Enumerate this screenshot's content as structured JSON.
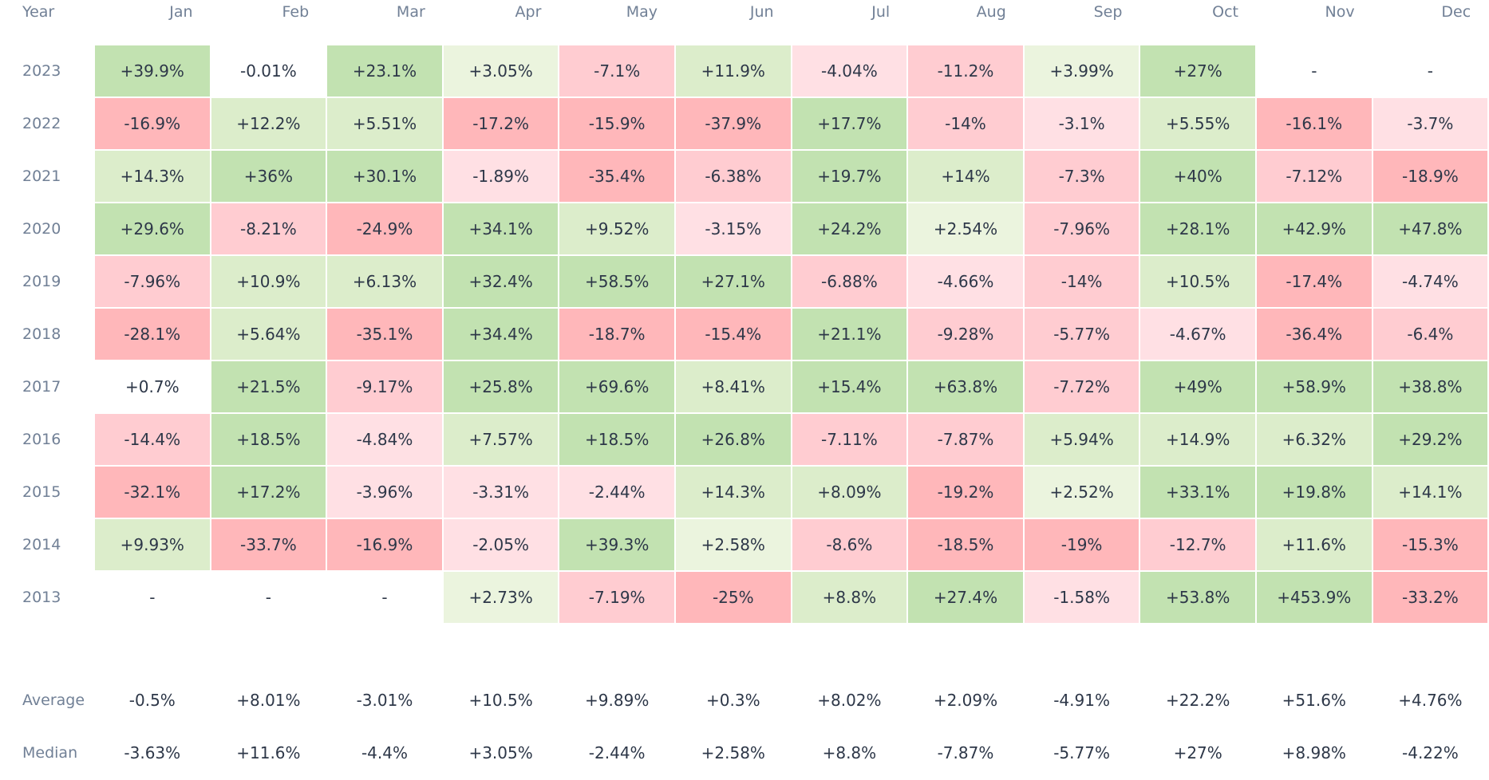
{
  "chart_data": {
    "type": "heatmap",
    "title": "",
    "row_header": "Year",
    "columns": [
      "Jan",
      "Feb",
      "Mar",
      "Apr",
      "May",
      "Jun",
      "Jul",
      "Aug",
      "Sep",
      "Oct",
      "Nov",
      "Dec"
    ],
    "rows": [
      {
        "year": "2023",
        "values": [
          "+39.9%",
          "-0.01%",
          "+23.1%",
          "+3.05%",
          "-7.1%",
          "+11.9%",
          "-4.04%",
          "-11.2%",
          "+3.99%",
          "+27%",
          "-",
          "-"
        ]
      },
      {
        "year": "2022",
        "values": [
          "-16.9%",
          "+12.2%",
          "+5.51%",
          "-17.2%",
          "-15.9%",
          "-37.9%",
          "+17.7%",
          "-14%",
          "-3.1%",
          "+5.55%",
          "-16.1%",
          "-3.7%"
        ]
      },
      {
        "year": "2021",
        "values": [
          "+14.3%",
          "+36%",
          "+30.1%",
          "-1.89%",
          "-35.4%",
          "-6.38%",
          "+19.7%",
          "+14%",
          "-7.3%",
          "+40%",
          "-7.12%",
          "-18.9%"
        ]
      },
      {
        "year": "2020",
        "values": [
          "+29.6%",
          "-8.21%",
          "-24.9%",
          "+34.1%",
          "+9.52%",
          "-3.15%",
          "+24.2%",
          "+2.54%",
          "-7.96%",
          "+28.1%",
          "+42.9%",
          "+47.8%"
        ]
      },
      {
        "year": "2019",
        "values": [
          "-7.96%",
          "+10.9%",
          "+6.13%",
          "+32.4%",
          "+58.5%",
          "+27.1%",
          "-6.88%",
          "-4.66%",
          "-14%",
          "+10.5%",
          "-17.4%",
          "-4.74%"
        ]
      },
      {
        "year": "2018",
        "values": [
          "-28.1%",
          "+5.64%",
          "-35.1%",
          "+34.4%",
          "-18.7%",
          "-15.4%",
          "+21.1%",
          "-9.28%",
          "-5.77%",
          "-4.67%",
          "-36.4%",
          "-6.4%"
        ]
      },
      {
        "year": "2017",
        "values": [
          "+0.7%",
          "+21.5%",
          "-9.17%",
          "+25.8%",
          "+69.6%",
          "+8.41%",
          "+15.4%",
          "+63.8%",
          "-7.72%",
          "+49%",
          "+58.9%",
          "+38.8%"
        ]
      },
      {
        "year": "2016",
        "values": [
          "-14.4%",
          "+18.5%",
          "-4.84%",
          "+7.57%",
          "+18.5%",
          "+26.8%",
          "-7.11%",
          "-7.87%",
          "+5.94%",
          "+14.9%",
          "+6.32%",
          "+29.2%"
        ]
      },
      {
        "year": "2015",
        "values": [
          "-32.1%",
          "+17.2%",
          "-3.96%",
          "-3.31%",
          "-2.44%",
          "+14.3%",
          "+8.09%",
          "-19.2%",
          "+2.52%",
          "+33.1%",
          "+19.8%",
          "+14.1%"
        ]
      },
      {
        "year": "2014",
        "values": [
          "+9.93%",
          "-33.7%",
          "-16.9%",
          "-2.05%",
          "+39.3%",
          "+2.58%",
          "-8.6%",
          "-18.5%",
          "-19%",
          "-12.7%",
          "+11.6%",
          "-15.3%"
        ]
      },
      {
        "year": "2013",
        "values": [
          "-",
          "-",
          "-",
          "+2.73%",
          "-7.19%",
          "-25%",
          "+8.8%",
          "+27.4%",
          "-1.58%",
          "+53.8%",
          "+453.9%",
          "-33.2%"
        ]
      }
    ],
    "summary": [
      {
        "label": "Average",
        "values": [
          "-0.5%",
          "+8.01%",
          "-3.01%",
          "+10.5%",
          "+9.89%",
          "+0.3%",
          "+8.02%",
          "+2.09%",
          "-4.91%",
          "+22.2%",
          "+51.6%",
          "+4.76%"
        ]
      },
      {
        "label": "Median",
        "values": [
          "-3.63%",
          "+11.6%",
          "-4.4%",
          "+3.05%",
          "-2.44%",
          "+2.58%",
          "+8.8%",
          "-7.87%",
          "-5.77%",
          "+27%",
          "+8.98%",
          "-4.22%"
        ]
      }
    ],
    "colors": {
      "pos_strong": "#c2e2b1",
      "pos_mid": "#dcedcb",
      "pos_light": "#ebf4de",
      "neg_strong": "#ffb7ba",
      "neg_mid": "#ffccd1",
      "neg_light": "#ffe0e4"
    }
  }
}
